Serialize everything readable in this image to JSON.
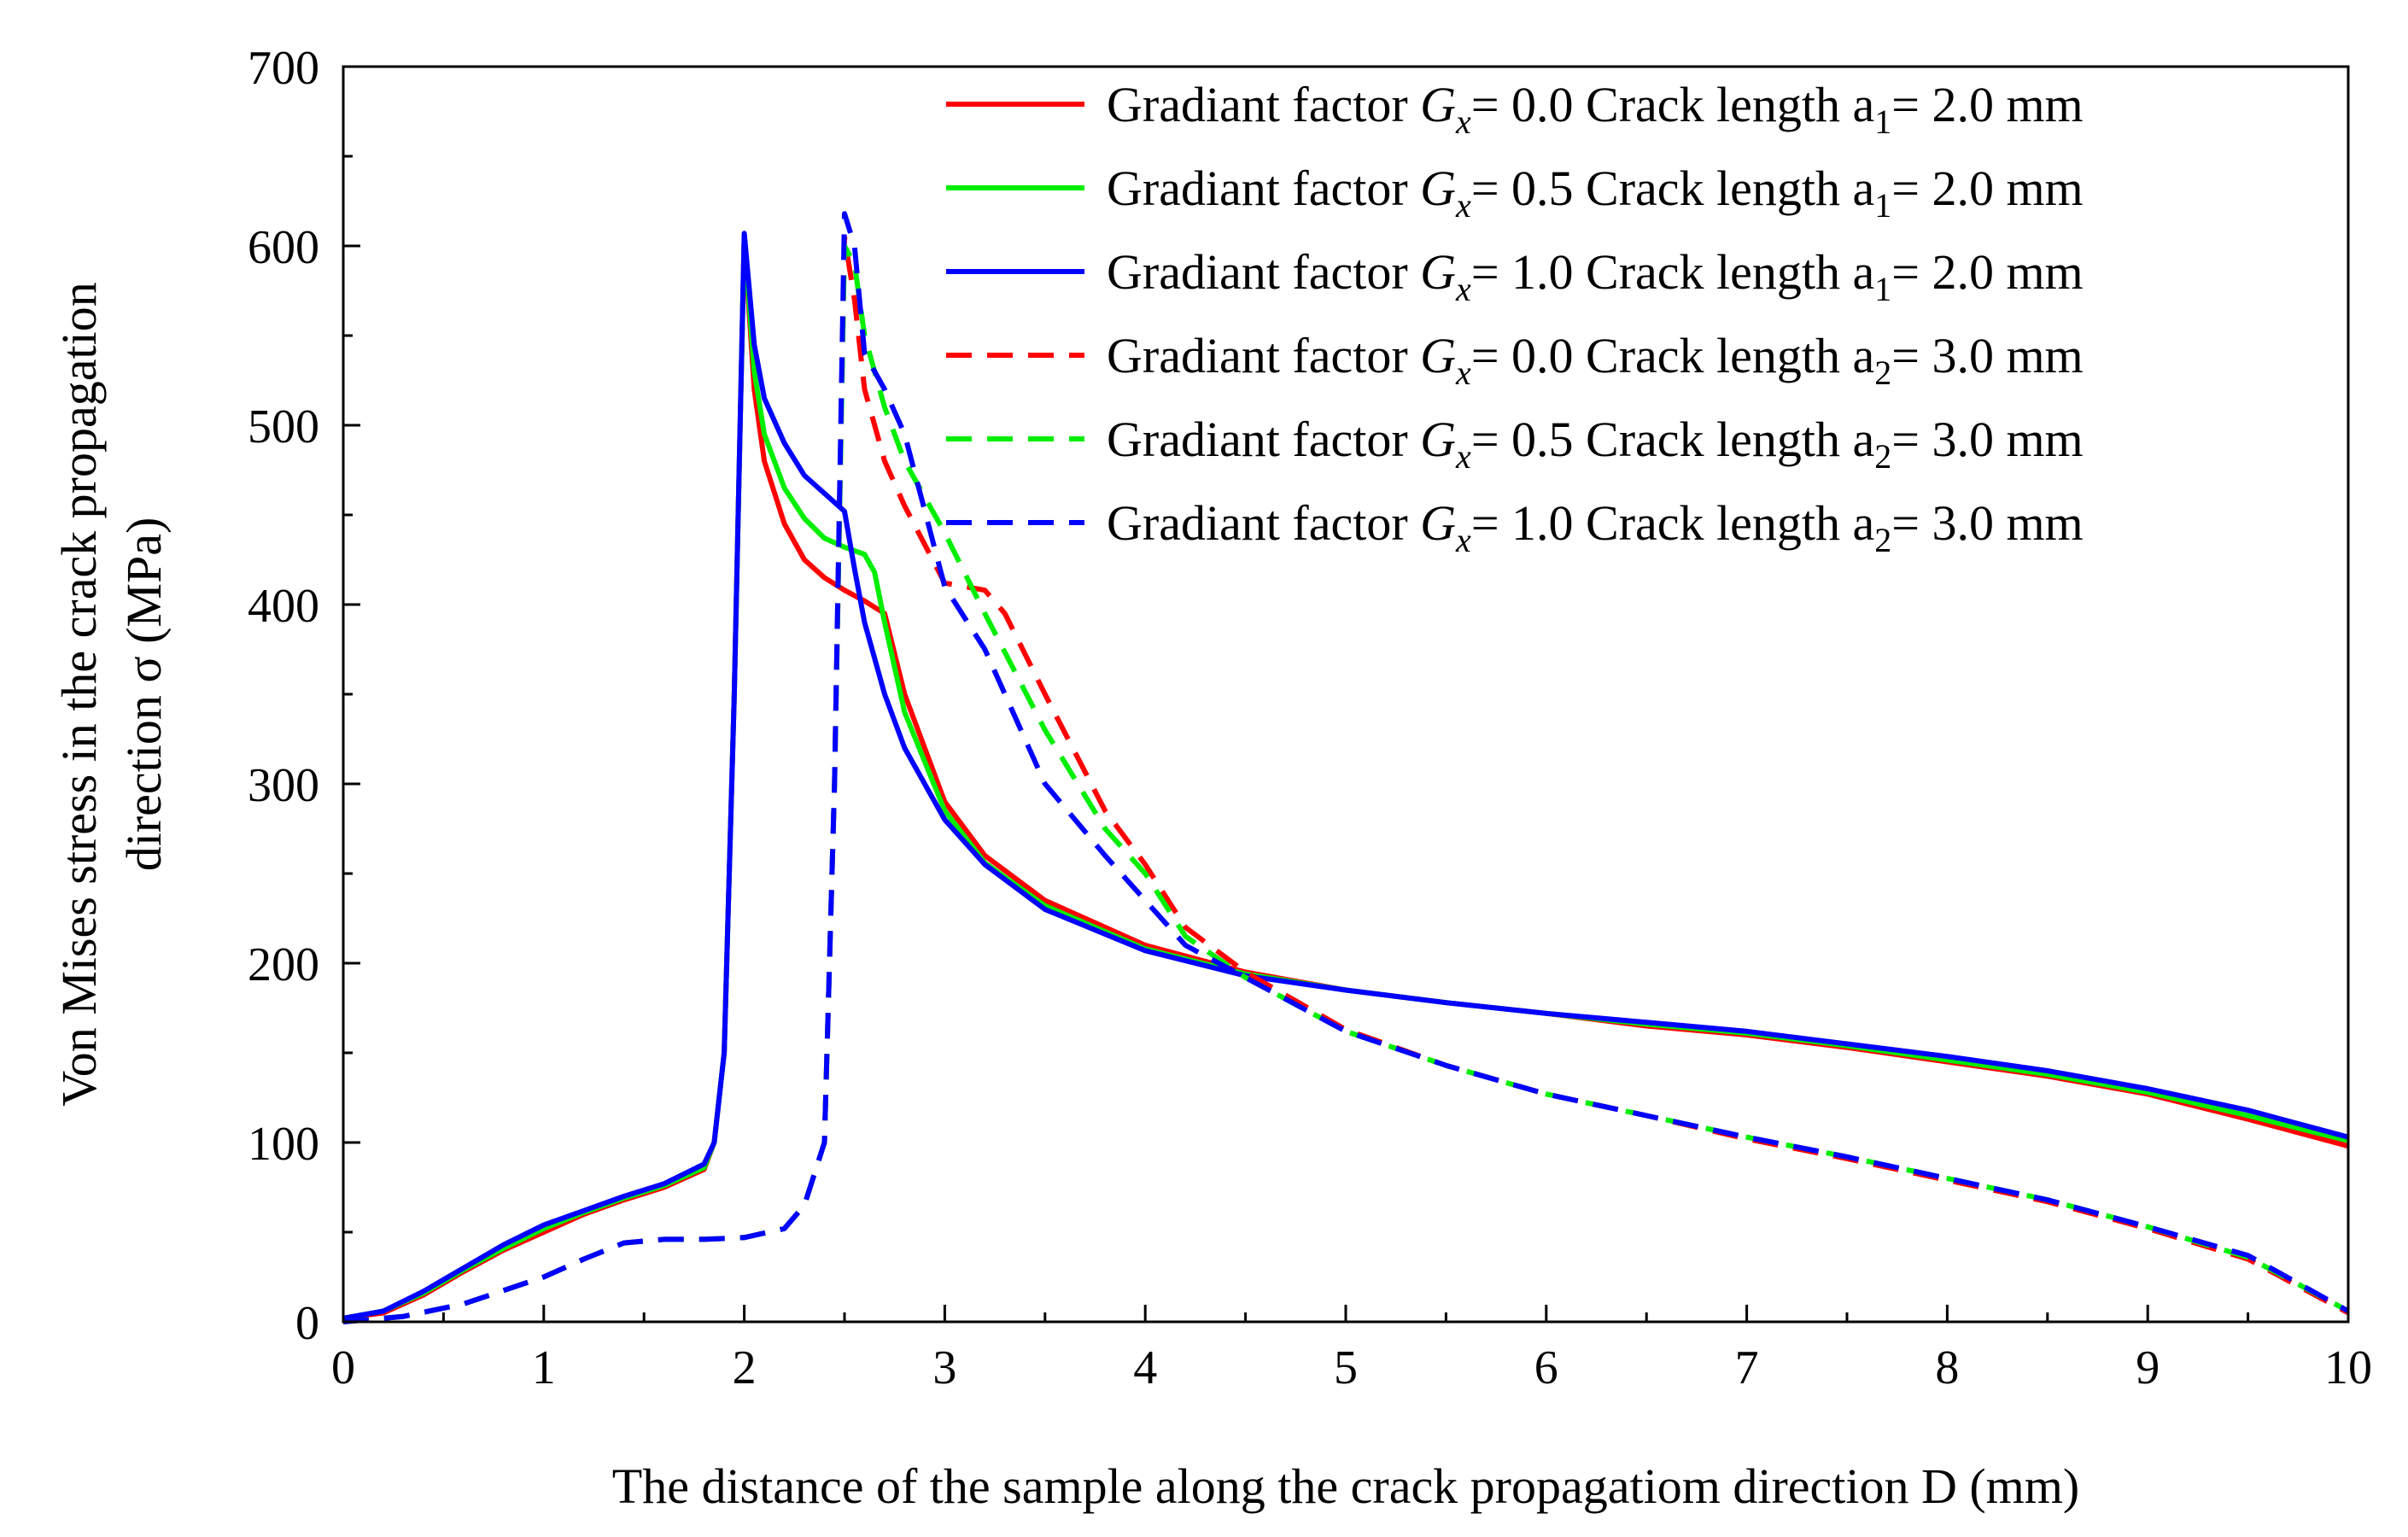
{
  "chart_data": {
    "type": "line",
    "title": "",
    "xlabel": "The distance of the sample along the crack propagatiom direction D (mm)",
    "ylabel_line1": "Von Mises stress in the crack propagation",
    "ylabel_line2": "direction σ (MPa)",
    "xlim": [
      0,
      10
    ],
    "ylim": [
      0,
      700
    ],
    "xticks": [
      0,
      1,
      2,
      3,
      4,
      5,
      6,
      7,
      8,
      9,
      10
    ],
    "yticks": [
      0,
      100,
      200,
      300,
      400,
      500,
      600,
      700
    ],
    "xtick_labels": [
      "0",
      "1",
      "2",
      "3",
      "4",
      "5",
      "6",
      "7",
      "8",
      "9",
      "10"
    ],
    "ytick_labels": [
      "0",
      "100",
      "200",
      "300",
      "400",
      "500",
      "600",
      "700"
    ],
    "grid": false,
    "legend_position": "top-right",
    "legend_prefix": "Gradiant factor",
    "legend_symbol": "G",
    "legend_symbol_sub": "x",
    "series": [
      {
        "name": "Gradiant factor Gx= 0.0 Crack length a1= 2.0 mm",
        "gx_text": "= 0.0 Crack length a",
        "a_sub": "1",
        "a_text": "= 2.0 mm",
        "color": "#ff0000",
        "dash": "solid",
        "x": [
          0,
          0.2,
          0.4,
          0.6,
          0.8,
          1.0,
          1.2,
          1.4,
          1.6,
          1.8,
          1.85,
          1.9,
          1.95,
          2.0,
          2.05,
          2.1,
          2.2,
          2.3,
          2.4,
          2.5,
          2.6,
          2.7,
          2.8,
          3.0,
          3.2,
          3.5,
          4.0,
          4.5,
          5.0,
          5.5,
          6.0,
          6.5,
          7.0,
          7.5,
          8.0,
          8.5,
          9.0,
          9.5,
          10.0
        ],
        "y": [
          2,
          5,
          15,
          28,
          40,
          50,
          60,
          68,
          75,
          85,
          100,
          150,
          350,
          605,
          520,
          480,
          445,
          425,
          415,
          408,
          402,
          395,
          350,
          290,
          260,
          235,
          210,
          195,
          185,
          178,
          172,
          165,
          160,
          153,
          145,
          137,
          127,
          113,
          98
        ]
      },
      {
        "name": "Gradiant factor Gx= 0.5 Crack length a1= 2.0 mm",
        "gx_text": "= 0.5 Crack length a",
        "a_sub": "1",
        "a_text": "= 2.0 mm",
        "color": "#00ee00",
        "dash": "solid",
        "x": [
          0,
          0.2,
          0.4,
          0.6,
          0.8,
          1.0,
          1.2,
          1.4,
          1.6,
          1.8,
          1.85,
          1.9,
          1.95,
          2.0,
          2.05,
          2.1,
          2.2,
          2.3,
          2.4,
          2.5,
          2.6,
          2.65,
          2.7,
          2.8,
          3.0,
          3.2,
          3.5,
          4.0,
          4.5,
          5.0,
          5.5,
          6.0,
          6.5,
          7.0,
          7.5,
          8.0,
          8.5,
          9.0,
          9.5,
          10.0
        ],
        "y": [
          2,
          6,
          16,
          29,
          41,
          52,
          61,
          69,
          76,
          86,
          100,
          150,
          350,
          605,
          530,
          495,
          465,
          448,
          437,
          432,
          428,
          418,
          390,
          340,
          285,
          256,
          232,
          208,
          194,
          185,
          178,
          172,
          166,
          161,
          154,
          146,
          138,
          128,
          115,
          101
        ]
      },
      {
        "name": "Gradiant factor Gx= 1.0 Crack length a1= 2.0 mm",
        "gx_text": "= 1.0 Crack length a",
        "a_sub": "1",
        "a_text": "= 2.0 mm",
        "color": "#0000ff",
        "dash": "solid",
        "x": [
          0,
          0.2,
          0.4,
          0.6,
          0.8,
          1.0,
          1.2,
          1.4,
          1.6,
          1.8,
          1.85,
          1.9,
          1.95,
          2.0,
          2.05,
          2.1,
          2.2,
          2.3,
          2.4,
          2.5,
          2.55,
          2.6,
          2.7,
          2.8,
          3.0,
          3.2,
          3.5,
          4.0,
          4.5,
          5.0,
          5.5,
          6.0,
          6.5,
          7.0,
          7.5,
          8.0,
          8.5,
          9.0,
          9.5,
          10.0
        ],
        "y": [
          2,
          6,
          17,
          30,
          43,
          54,
          62,
          70,
          77,
          88,
          100,
          150,
          350,
          607,
          545,
          515,
          490,
          472,
          462,
          452,
          420,
          390,
          350,
          320,
          280,
          255,
          230,
          207,
          193,
          185,
          178,
          172,
          167,
          162,
          155,
          148,
          140,
          130,
          118,
          103
        ]
      },
      {
        "name": "Gradiant factor Gx= 0.0 Crack length a2= 3.0 mm",
        "gx_text": "= 0.0 Crack length a",
        "a_sub": "2",
        "a_text": "= 3.0 mm",
        "color": "#ff0000",
        "dash": "dashed",
        "x": [
          0,
          0.3,
          0.6,
          1.0,
          1.2,
          1.4,
          1.6,
          1.8,
          2.0,
          2.2,
          2.3,
          2.4,
          2.45,
          2.5,
          2.55,
          2.6,
          2.7,
          2.8,
          3.0,
          3.2,
          3.3,
          3.5,
          3.8,
          4.0,
          4.2,
          4.5,
          5.0,
          5.5,
          6.0,
          6.5,
          7.0,
          7.5,
          8.0,
          8.5,
          9.0,
          9.5,
          10.0
        ],
        "y": [
          0,
          3,
          10,
          25,
          35,
          44,
          46,
          46,
          47,
          52,
          65,
          100,
          300,
          605,
          570,
          520,
          480,
          455,
          412,
          408,
          395,
          350,
          285,
          255,
          220,
          195,
          163,
          143,
          127,
          115,
          102,
          91,
          79,
          67,
          52,
          35,
          5
        ]
      },
      {
        "name": "Gradiant factor Gx= 0.5 Crack length a2= 3.0 mm",
        "gx_text": "= 0.5 Crack length a",
        "a_sub": "2",
        "a_text": "= 3.0 mm",
        "color": "#00ee00",
        "dash": "dashed",
        "x": [
          0,
          0.3,
          0.6,
          1.0,
          1.2,
          1.4,
          1.6,
          1.8,
          2.0,
          2.2,
          2.3,
          2.4,
          2.45,
          2.5,
          2.55,
          2.6,
          2.7,
          2.8,
          3.0,
          3.2,
          3.5,
          3.8,
          4.0,
          4.2,
          4.5,
          5.0,
          5.5,
          6.0,
          6.5,
          7.0,
          7.5,
          8.0,
          8.5,
          9.0,
          9.5,
          10.0
        ],
        "y": [
          0,
          3,
          10,
          25,
          35,
          44,
          46,
          46,
          47,
          52,
          65,
          100,
          300,
          600,
          590,
          550,
          510,
          480,
          440,
          395,
          330,
          275,
          250,
          215,
          192,
          162,
          143,
          127,
          115,
          103,
          92,
          80,
          68,
          53,
          36,
          6
        ]
      },
      {
        "name": "Gradiant factor Gx= 1.0 Crack length a2= 3.0 mm",
        "gx_text": "= 1.0 Crack length a",
        "a_sub": "2",
        "a_text": "= 3.0 mm",
        "color": "#0000ff",
        "dash": "dashed",
        "x": [
          0,
          0.3,
          0.6,
          1.0,
          1.2,
          1.4,
          1.6,
          1.8,
          2.0,
          2.2,
          2.3,
          2.4,
          2.45,
          2.5,
          2.55,
          2.6,
          2.7,
          2.8,
          3.0,
          3.2,
          3.5,
          3.8,
          4.0,
          4.2,
          4.5,
          5.0,
          5.5,
          6.0,
          6.5,
          7.0,
          7.5,
          8.0,
          8.5,
          9.0,
          9.5,
          10.0
        ],
        "y": [
          0,
          3,
          10,
          25,
          35,
          44,
          46,
          46,
          47,
          52,
          65,
          100,
          300,
          618,
          600,
          540,
          520,
          495,
          410,
          375,
          300,
          260,
          235,
          210,
          192,
          162,
          143,
          127,
          115,
          103,
          92,
          80,
          68,
          53,
          37,
          6
        ]
      }
    ]
  }
}
